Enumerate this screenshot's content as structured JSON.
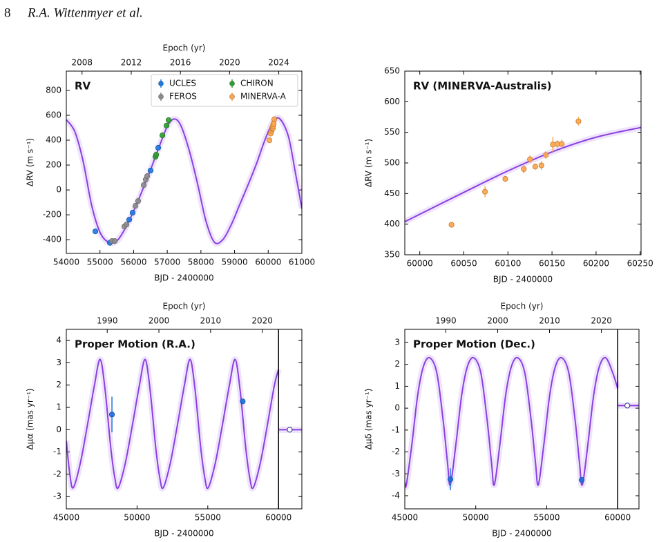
{
  "header": {
    "page_number": "8",
    "authors": "R.A. Wittenmyer et al."
  },
  "chart_data": [
    {
      "type": "scatter",
      "title": "RV",
      "xlabel": "BJD - 2400000",
      "ylabel": "ΔRV (m s⁻¹)",
      "x2label": "Epoch (yr)",
      "xlim": [
        54000,
        61000
      ],
      "xticks": [
        54000,
        55000,
        56000,
        57000,
        58000,
        59000,
        60000,
        61000
      ],
      "ylim": [
        -510,
        955
      ],
      "yticks": [
        -400,
        -200,
        0,
        200,
        400,
        600,
        800
      ],
      "x2lim": [
        2006.72,
        2025.88
      ],
      "x2ticks": [
        2008,
        2012,
        2016,
        2020,
        2024
      ],
      "legend_loc": "upper right",
      "series": [
        {
          "name": "UCLES",
          "kind": "points",
          "color": "#1f7ae0",
          "x": [
            54862,
            55294,
            55869,
            55970,
            56505,
            56731
          ],
          "values": [
            -333,
            -425,
            -239,
            -183,
            156,
            339
          ]
        },
        {
          "name": "FEROS",
          "kind": "points",
          "color": "#8c8c8c",
          "x": [
            55355,
            55437,
            55725,
            55786,
            56053,
            56135,
            56300,
            56361,
            56402
          ],
          "values": [
            -411,
            -411,
            -294,
            -278,
            -128,
            -89,
            39,
            83,
            111
          ]
        },
        {
          "name": "CHIRON",
          "kind": "points",
          "color": "#2ca02c",
          "x": [
            56650,
            56670,
            56855,
            56977,
            57039
          ],
          "values": [
            267,
            283,
            439,
            517,
            561
          ]
        },
        {
          "name": "MINERVA-A",
          "kind": "points",
          "color": "#ffa64d",
          "x": [
            60036,
            60074,
            60097,
            60118,
            60125,
            60131,
            60138,
            60143,
            60151,
            60156,
            60161,
            60180
          ],
          "values": [
            399,
            453,
            474,
            490,
            506,
            494,
            496,
            513,
            530,
            531,
            531,
            568
          ]
        },
        {
          "kind": "line",
          "color": "#8a3fe0",
          "x": [
            54000,
            54250,
            54500,
            54750,
            55000,
            55250,
            55500,
            55750,
            56000,
            56250,
            56500,
            56750,
            57000,
            57200,
            57400,
            57650,
            57900,
            58150,
            58400,
            58650,
            58900,
            59150,
            59400,
            59650,
            59900,
            60150,
            60350,
            60600,
            60800,
            61000
          ],
          "values": [
            565,
            470,
            230,
            -120,
            -340,
            -420,
            -410,
            -310,
            -170,
            -10,
            160,
            340,
            510,
            570,
            520,
            320,
            50,
            -250,
            -420,
            -400,
            -280,
            -120,
            40,
            210,
            400,
            550,
            570,
            430,
            150,
            -150
          ]
        }
      ]
    },
    {
      "type": "scatter",
      "title": "RV (MINERVA-Australis)",
      "xlabel": "BJD - 2400000",
      "ylabel": "ΔRV (m s⁻¹)",
      "xlim": [
        59983,
        60251
      ],
      "xticks": [
        60000,
        60050,
        60100,
        60150,
        60200,
        60250
      ],
      "ylim": [
        350,
        650
      ],
      "yticks": [
        350,
        400,
        450,
        500,
        550,
        600,
        650
      ],
      "series": [
        {
          "kind": "line",
          "color": "#8a3fe0",
          "x": [
            59983,
            60050,
            60100,
            60150,
            60200,
            60251
          ],
          "values": [
            404,
            452,
            487,
            518,
            542,
            558
          ]
        },
        {
          "kind": "points",
          "color": "#ffa64d",
          "x": [
            60036,
            60074,
            60097,
            60118,
            60125,
            60131,
            60138,
            60143,
            60151,
            60156,
            60161,
            60180
          ],
          "values": [
            399,
            453,
            474,
            490,
            506,
            494,
            496,
            513,
            530,
            531,
            531,
            568
          ],
          "errors": [
            4,
            9,
            5,
            7,
            6,
            5,
            7,
            6,
            12,
            6,
            7,
            7
          ]
        }
      ]
    },
    {
      "type": "scatter",
      "title": "Proper Motion (R.A.)",
      "xlabel": "BJD - 2400000",
      "ylabel": "Δμα (mas yr⁻¹)",
      "x2label": "Epoch (yr)",
      "xlim": [
        45000,
        61650
      ],
      "xticks": [
        45000,
        50000,
        55000,
        60000
      ],
      "ylim": [
        -3.55,
        4.5
      ],
      "yticks": [
        -3,
        -2,
        -1,
        0,
        1,
        2,
        3,
        4
      ],
      "x2lim": [
        1982.08,
        2027.67
      ],
      "x2ticks": [
        1990,
        2000,
        2010,
        2020
      ],
      "vline": 60000,
      "series": [
        {
          "kind": "line",
          "color": "#8a3fe0",
          "x": [
            45000,
            45250,
            45490,
            45990,
            46490,
            46990,
            47390,
            47740,
            48140,
            48440,
            48670,
            49170,
            49670,
            50170,
            50570,
            50920,
            51320,
            51620,
            51850,
            52350,
            52850,
            53350,
            53750,
            54100,
            54500,
            54800,
            55030,
            55530,
            56030,
            56530,
            56930,
            57280,
            57680,
            57980,
            58210,
            58710,
            59210,
            59710,
            60000
          ],
          "values": [
            -0.5,
            -2.0,
            -2.6,
            -1.5,
            0.2,
            2.0,
            3.15,
            1.8,
            -0.8,
            -2.2,
            -2.6,
            -1.5,
            0.2,
            2.0,
            3.15,
            1.8,
            -0.8,
            -2.2,
            -2.6,
            -1.5,
            0.2,
            2.0,
            3.15,
            1.8,
            -0.8,
            -2.2,
            -2.6,
            -1.5,
            0.2,
            2.0,
            3.15,
            1.8,
            -0.8,
            -2.2,
            -2.6,
            -1.5,
            0.2,
            2.0,
            2.7
          ]
        },
        {
          "kind": "line",
          "color": "#8a3fe0",
          "x": [
            60000,
            61650
          ],
          "values": [
            0,
            0
          ]
        },
        {
          "kind": "points",
          "color": "#1f6fde",
          "x": [
            48226,
            57465
          ],
          "values": [
            0.68,
            1.27
          ],
          "errors": [
            0.8,
            0.05
          ]
        },
        {
          "kind": "points",
          "color": "#ffffff",
          "edgecolor": "#2a2f7a",
          "x": [
            60790
          ],
          "values": [
            0
          ],
          "errors": [
            0.04
          ]
        }
      ]
    },
    {
      "type": "scatter",
      "title": "Proper Motion (Dec.)",
      "xlabel": "BJD - 2400000",
      "ylabel": "Δμδ (mas yr⁻¹)",
      "x2label": "Epoch (yr)",
      "xlim": [
        45000,
        61500
      ],
      "xticks": [
        45000,
        50000,
        55000,
        60000
      ],
      "ylim": [
        -4.6,
        3.6
      ],
      "yticks": [
        -4,
        -3,
        -2,
        -1,
        0,
        1,
        2,
        3
      ],
      "x2lim": [
        1982.08,
        2027.25
      ],
      "x2ticks": [
        1990,
        2000,
        2010,
        2020
      ],
      "vline": 60000,
      "series": [
        {
          "kind": "line",
          "color": "#8a3fe0",
          "x": [
            45000,
            45110,
            45510,
            45910,
            46310,
            46760,
            47260,
            47710,
            48010,
            48210,
            48610,
            49010,
            49410,
            49860,
            50360,
            50810,
            51110,
            51310,
            51710,
            52110,
            52510,
            52960,
            53460,
            53910,
            54210,
            54410,
            54810,
            55210,
            55610,
            56060,
            56560,
            57010,
            57310,
            57510,
            57910,
            58310,
            58710,
            59160,
            59660,
            60000
          ],
          "values": [
            -3.4,
            -3.5,
            -1.6,
            0.6,
            1.9,
            2.3,
            1.6,
            -0.6,
            -2.5,
            -3.5,
            -1.6,
            0.6,
            1.9,
            2.3,
            1.6,
            -0.6,
            -2.5,
            -3.5,
            -1.6,
            0.6,
            1.9,
            2.3,
            1.6,
            -0.6,
            -2.5,
            -3.5,
            -1.6,
            0.6,
            1.9,
            2.3,
            1.6,
            -0.6,
            -2.5,
            -3.5,
            -1.6,
            0.6,
            1.9,
            2.3,
            1.6,
            0.9
          ]
        },
        {
          "kind": "line",
          "color": "#8a3fe0",
          "x": [
            60000,
            61500
          ],
          "values": [
            0.12,
            0.12
          ]
        },
        {
          "kind": "points",
          "color": "#1f6fde",
          "x": [
            48213,
            57465
          ],
          "values": [
            -3.25,
            -3.28
          ],
          "errors": [
            0.5,
            0.06
          ]
        },
        {
          "kind": "points",
          "color": "#ffffff",
          "edgecolor": "#2a2f7a",
          "x": [
            60680
          ],
          "values": [
            0.12
          ],
          "errors": [
            0.04
          ]
        }
      ]
    }
  ]
}
